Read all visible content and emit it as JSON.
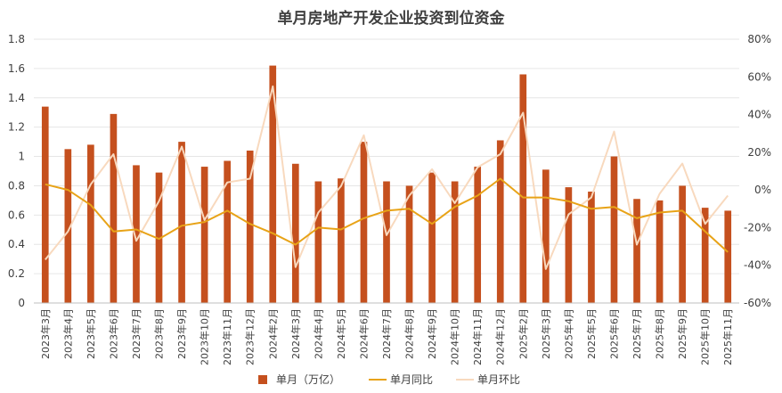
{
  "chart_data": {
    "type": "bar",
    "title": "单月房地产开发企业投资到位资金",
    "categories": [
      "2023年3月",
      "2023年4月",
      "2023年5月",
      "2023年6月",
      "2023年7月",
      "2023年8月",
      "2023年9月",
      "2023年10月",
      "2023年11月",
      "2023年12月",
      "2024年2月",
      "2024年3月",
      "2024年4月",
      "2024年5月",
      "2024年6月",
      "2024年7月",
      "2024年8月",
      "2024年9月",
      "2024年10月",
      "2024年11月",
      "2024年12月",
      "2025年2月",
      "2025年3月",
      "2025年4月",
      "2025年5月",
      "2025年6月",
      "2025年7月",
      "2025年8月",
      "2025年9月",
      "2025年10月",
      "2025年11月"
    ],
    "y_left": {
      "min": 0,
      "max": 1.8,
      "ticks": [
        "0",
        "0.2",
        "0.4",
        "0.6",
        "0.8",
        "1",
        "1.2",
        "1.4",
        "1.6",
        "1.8"
      ]
    },
    "y_right": {
      "min": -60,
      "max": 80,
      "ticks": [
        "-60%",
        "-40%",
        "-20%",
        "0%",
        "20%",
        "40%",
        "60%",
        "80%"
      ]
    },
    "grid": true,
    "legend_position": "bottom",
    "series": [
      {
        "name": "单月（万亿）",
        "kind": "bar",
        "axis": "left",
        "color": "#C5501E",
        "values": [
          1.34,
          1.05,
          1.08,
          1.29,
          0.94,
          0.89,
          1.1,
          0.93,
          0.97,
          1.04,
          1.62,
          0.95,
          0.83,
          0.85,
          1.1,
          0.83,
          0.8,
          0.89,
          0.83,
          0.93,
          1.11,
          1.56,
          0.91,
          0.79,
          0.76,
          1.0,
          0.71,
          0.7,
          0.8,
          0.65,
          0.63
        ]
      },
      {
        "name": "单月同比",
        "kind": "line",
        "axis": "right",
        "color": "#E8A317",
        "values": [
          3,
          0,
          -8,
          -22,
          -21,
          -26,
          -19,
          -17,
          -11,
          -18,
          -23,
          -29,
          -20,
          -21,
          -15,
          -11,
          -10,
          -18,
          -9,
          -3,
          6,
          -4,
          -4,
          -6,
          -10,
          -9,
          -15,
          -12,
          -11,
          -22,
          -33
        ]
      },
      {
        "name": "单月环比",
        "kind": "line",
        "axis": "right",
        "color": "#F8D9BE",
        "values": [
          -37,
          -22,
          3,
          19,
          -27,
          -6,
          23,
          -16,
          4,
          6,
          55,
          -41,
          -12,
          2,
          29,
          -24,
          -3,
          11,
          -7,
          12,
          19,
          41,
          -42,
          -13,
          -4,
          31,
          -29,
          -2,
          14,
          -18,
          -3
        ]
      }
    ]
  }
}
